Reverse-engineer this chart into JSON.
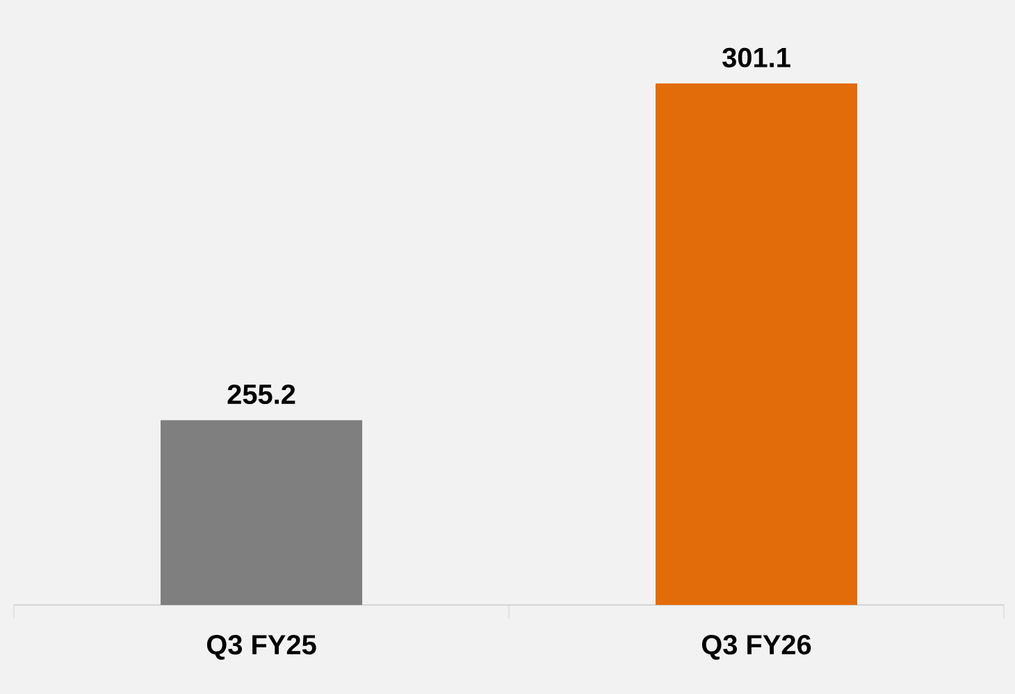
{
  "chart_data": {
    "type": "bar",
    "categories": [
      "Q3 FY25",
      "Q3 FY26"
    ],
    "values": [
      255.2,
      301.1
    ],
    "ylim": [
      230,
      301.1
    ],
    "colors": [
      "#7f7f7f",
      "#e36c0a"
    ],
    "data_labels": true
  }
}
